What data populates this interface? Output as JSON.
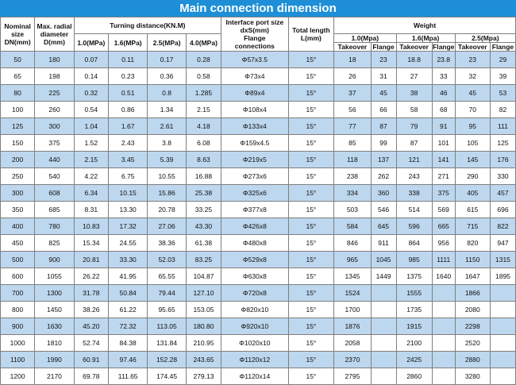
{
  "title": "Main connection dimension",
  "headers": {
    "nominal_size": [
      "Nominal",
      "size",
      "DN(mm)"
    ],
    "radial_diameter": [
      "Max. radial",
      "diameter",
      "D(mm)"
    ],
    "turning_distance": "Turning distance(KN.M)",
    "pressures": [
      "1.0(MPa)",
      "1.6(MPa)",
      "2.5(MPa)",
      "4.0(MPa)"
    ],
    "interface_port": [
      "Interface port size",
      "dxS(mm)",
      "Flange",
      "connections"
    ],
    "total_length": [
      "Total length",
      "L(mm)"
    ],
    "weight": "Weight",
    "weight_groups": [
      "1.0(Mpa)",
      "1.6(Mpa)",
      "2.5(Mpa)"
    ],
    "weight_sub": [
      "Takeover",
      "Flange"
    ]
  },
  "rows": [
    {
      "dn": "50",
      "d": "180",
      "t1": "0.07",
      "t2": "0.11",
      "t3": "0.17",
      "t4": "0.28",
      "port": "Φ57x3.5",
      "len": "15°",
      "w1t": "18",
      "w1f": "23",
      "w2t": "18.8",
      "w2f": "23.8",
      "w3t": "23",
      "w3f": "29"
    },
    {
      "dn": "65",
      "d": "198",
      "t1": "0.14",
      "t2": "0.23",
      "t3": "0.36",
      "t4": "0.58",
      "port": "Φ73x4",
      "len": "15°",
      "w1t": "26",
      "w1f": "31",
      "w2t": "27",
      "w2f": "33",
      "w3t": "32",
      "w3f": "39"
    },
    {
      "dn": "80",
      "d": "225",
      "t1": "0.32",
      "t2": "0.51",
      "t3": "0.8",
      "t4": "1.285",
      "port": "Φ89x4",
      "len": "15°",
      "w1t": "37",
      "w1f": "45",
      "w2t": "38",
      "w2f": "46",
      "w3t": "45",
      "w3f": "53"
    },
    {
      "dn": "100",
      "d": "260",
      "t1": "0.54",
      "t2": "0.86",
      "t3": "1.34",
      "t4": "2.15",
      "port": "Φ108x4",
      "len": "15°",
      "w1t": "56",
      "w1f": "66",
      "w2t": "58",
      "w2f": "68",
      "w3t": "70",
      "w3f": "82"
    },
    {
      "dn": "125",
      "d": "300",
      "t1": "1.04",
      "t2": "1.67",
      "t3": "2.61",
      "t4": "4.18",
      "port": "Φ133x4",
      "len": "15°",
      "w1t": "77",
      "w1f": "87",
      "w2t": "79",
      "w2f": "91",
      "w3t": "95",
      "w3f": "111"
    },
    {
      "dn": "150",
      "d": "375",
      "t1": "1.52",
      "t2": "2.43",
      "t3": "3.8",
      "t4": "6.08",
      "port": "Φ159x4.5",
      "len": "15°",
      "w1t": "85",
      "w1f": "99",
      "w2t": "87",
      "w2f": "101",
      "w3t": "105",
      "w3f": "125"
    },
    {
      "dn": "200",
      "d": "440",
      "t1": "2.15",
      "t2": "3.45",
      "t3": "5.39",
      "t4": "8.63",
      "port": "Φ219x5",
      "len": "15°",
      "w1t": "118",
      "w1f": "137",
      "w2t": "121",
      "w2f": "141",
      "w3t": "145",
      "w3f": "176"
    },
    {
      "dn": "250",
      "d": "540",
      "t1": "4.22",
      "t2": "6.75",
      "t3": "10.55",
      "t4": "16.88",
      "port": "Φ273x6",
      "len": "15°",
      "w1t": "238",
      "w1f": "262",
      "w2t": "243",
      "w2f": "271",
      "w3t": "290",
      "w3f": "330"
    },
    {
      "dn": "300",
      "d": "608",
      "t1": "6.34",
      "t2": "10.15",
      "t3": "15.86",
      "t4": "25.38",
      "port": "Φ325x6",
      "len": "15°",
      "w1t": "334",
      "w1f": "360",
      "w2t": "338",
      "w2f": "375",
      "w3t": "405",
      "w3f": "457"
    },
    {
      "dn": "350",
      "d": "685",
      "t1": "8.31",
      "t2": "13.30",
      "t3": "20.78",
      "t4": "33.25",
      "port": "Φ377x8",
      "len": "15°",
      "w1t": "503",
      "w1f": "546",
      "w2t": "514",
      "w2f": "569",
      "w3t": "615",
      "w3f": "696"
    },
    {
      "dn": "400",
      "d": "780",
      "t1": "10.83",
      "t2": "17.32",
      "t3": "27.06",
      "t4": "43.30",
      "port": "Φ426x8",
      "len": "15°",
      "w1t": "584",
      "w1f": "645",
      "w2t": "596",
      "w2f": "665",
      "w3t": "715",
      "w3f": "822"
    },
    {
      "dn": "450",
      "d": "825",
      "t1": "15.34",
      "t2": "24.55",
      "t3": "38.36",
      "t4": "61.38",
      "port": "Φ480x8",
      "len": "15°",
      "w1t": "846",
      "w1f": "911",
      "w2t": "864",
      "w2f": "956",
      "w3t": "820",
      "w3f": "947"
    },
    {
      "dn": "500",
      "d": "900",
      "t1": "20.81",
      "t2": "33.30",
      "t3": "52.03",
      "t4": "83.25",
      "port": "Φ529x8",
      "len": "15°",
      "w1t": "965",
      "w1f": "1045",
      "w2t": "985",
      "w2f": "1111",
      "w3t": "1150",
      "w3f": "1315"
    },
    {
      "dn": "600",
      "d": "1055",
      "t1": "26.22",
      "t2": "41.95",
      "t3": "65.55",
      "t4": "104.87",
      "port": "Φ630x8",
      "len": "15°",
      "w1t": "1345",
      "w1f": "1449",
      "w2t": "1375",
      "w2f": "1640",
      "w3t": "1647",
      "w3f": "1895"
    },
    {
      "dn": "700",
      "d": "1300",
      "t1": "31.78",
      "t2": "50.84",
      "t3": "79.44",
      "t4": "127.10",
      "port": "Φ720x8",
      "len": "15°",
      "w1t": "1524",
      "w1f": "",
      "w2t": "1555",
      "w2f": "",
      "w3t": "1866",
      "w3f": ""
    },
    {
      "dn": "800",
      "d": "1450",
      "t1": "38.26",
      "t2": "61.22",
      "t3": "95.65",
      "t4": "153.05",
      "port": "Φ820x10",
      "len": "15°",
      "w1t": "1700",
      "w1f": "",
      "w2t": "1735",
      "w2f": "",
      "w3t": "2080",
      "w3f": ""
    },
    {
      "dn": "900",
      "d": "1630",
      "t1": "45.20",
      "t2": "72.32",
      "t3": "113.05",
      "t4": "180.80",
      "port": "Φ920x10",
      "len": "15°",
      "w1t": "1876",
      "w1f": "",
      "w2t": "1915",
      "w2f": "",
      "w3t": "2298",
      "w3f": ""
    },
    {
      "dn": "1000",
      "d": "1810",
      "t1": "52.74",
      "t2": "84.38",
      "t3": "131.84",
      "t4": "210.95",
      "port": "Φ1020x10",
      "len": "15°",
      "w1t": "2058",
      "w1f": "",
      "w2t": "2100",
      "w2f": "",
      "w3t": "2520",
      "w3f": ""
    },
    {
      "dn": "1100",
      "d": "1990",
      "t1": "60.91",
      "t2": "97.46",
      "t3": "152.28",
      "t4": "243.65",
      "port": "Φ1120x12",
      "len": "15°",
      "w1t": "2370",
      "w1f": "",
      "w2t": "2425",
      "w2f": "",
      "w3t": "2880",
      "w3f": ""
    },
    {
      "dn": "1200",
      "d": "2170",
      "t1": "69.78",
      "t2": "111.65",
      "t3": "174.45",
      "t4": "279.13",
      "port": "Φ1120x14",
      "len": "15°",
      "w1t": "2795",
      "w1f": "",
      "w2t": "2860",
      "w2f": "",
      "w3t": "3280",
      "w3f": ""
    }
  ]
}
